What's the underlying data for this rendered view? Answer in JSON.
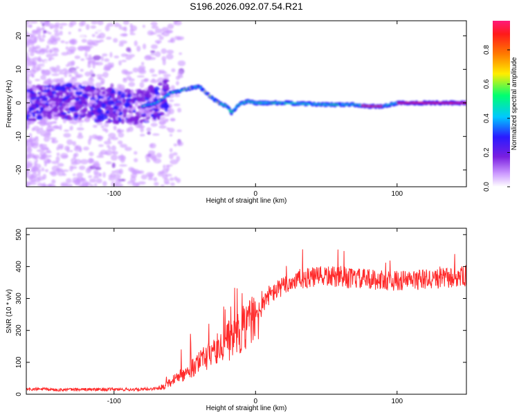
{
  "title": "S196.2026.092.07.54.R21",
  "chart_data": [
    {
      "type": "heatmap",
      "title": "S196.2026.092.07.54.R21",
      "xlabel": "Height of straight line (km)",
      "ylabel": "Frequency (Hz)",
      "xlim": [
        -162,
        149
      ],
      "ylim": [
        -25,
        24.5
      ],
      "xticks": [
        -100,
        0,
        100
      ],
      "yticks": [
        -20,
        -10,
        0,
        10,
        20
      ],
      "colorbar": {
        "label": "Normalized spectral amplitude",
        "range": [
          0,
          0.97
        ],
        "ticks": [
          0.0,
          0.2,
          0.4,
          0.6,
          0.8
        ],
        "colormap": [
          "#ffffff",
          "#cc99ff",
          "#7a1fe0",
          "#2a1aff",
          "#00c8ff",
          "#00ff70",
          "#ffee00",
          "#ff7a00",
          "#ff1a1a",
          "#ff1a7a"
        ]
      },
      "ridge": {
        "description_points_x": [
          -162,
          -140,
          -120,
          -100,
          -80,
          -70,
          -60,
          -50,
          -40,
          -32,
          -26,
          -20,
          -17,
          -12,
          -5,
          0,
          20,
          50,
          70,
          80,
          90,
          100,
          120,
          149
        ],
        "description_points_y": [
          -0.5,
          0.5,
          0,
          -1,
          -1,
          0,
          3,
          4,
          5,
          2,
          0,
          -1,
          -3,
          -0.5,
          0.5,
          0,
          0,
          -0.5,
          -0.5,
          -1,
          -1,
          0,
          0,
          0
        ]
      }
    },
    {
      "type": "line",
      "xlabel": "Height of straight line (km)",
      "ylabel": "SNR (10 * v/v)",
      "xlim": [
        -162,
        149
      ],
      "ylim": [
        0,
        520
      ],
      "xticks": [
        -100,
        0,
        100
      ],
      "yticks": [
        0,
        100,
        200,
        300,
        400,
        500
      ],
      "series": [
        {
          "name": "SNR",
          "color": "#ff2a2a",
          "x": [
            -162,
            -150,
            -140,
            -120,
            -100,
            -80,
            -70,
            -65,
            -60,
            -55,
            -50,
            -45,
            -40,
            -30,
            -20,
            -10,
            0,
            10,
            20,
            30,
            40,
            50,
            60,
            80,
            100,
            120,
            140,
            149
          ],
          "y": [
            15,
            16,
            14,
            15,
            15,
            15,
            18,
            25,
            40,
            55,
            60,
            80,
            100,
            130,
            170,
            200,
            250,
            310,
            340,
            360,
            365,
            370,
            365,
            360,
            355,
            360,
            365,
            370
          ]
        }
      ]
    }
  ]
}
